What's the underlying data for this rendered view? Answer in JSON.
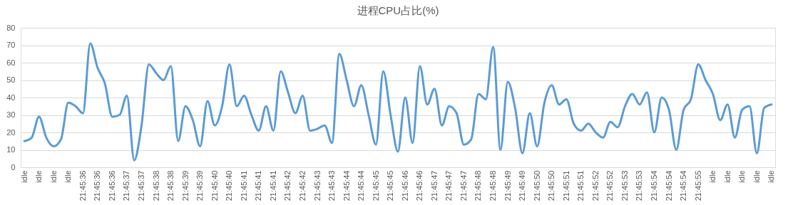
{
  "chart_data": {
    "type": "line",
    "title": "进程CPU占比(%)",
    "categories": [
      "idle",
      null,
      "idle",
      null,
      "idle",
      null,
      "idle",
      null,
      "21:45:36",
      null,
      "21:45:36",
      null,
      "21:45:36",
      null,
      "21:45:37",
      null,
      "21:45:37",
      null,
      "21:45:38",
      null,
      "21:45:38",
      null,
      "21:45:39",
      null,
      "21:45:39",
      null,
      "21:45:40",
      null,
      "21:45:40",
      null,
      "21:45:41",
      null,
      "21:45:41",
      null,
      "21:45:41",
      null,
      "21:45:42",
      null,
      "21:45:42",
      null,
      "21:45:43",
      null,
      "21:45:43",
      null,
      "21:45:44",
      null,
      "21:45:44",
      null,
      "21:45:45",
      null,
      "21:45:45",
      null,
      "21:45:46",
      null,
      "21:45:46",
      null,
      "21:45:47",
      null,
      "21:45:47",
      null,
      "21:45:47",
      null,
      "21:45:48",
      null,
      "21:45:48",
      null,
      "21:45:49",
      null,
      "21:45:49",
      null,
      "21:45:50",
      null,
      "21:45:50",
      null,
      "21:45:51",
      null,
      "21:45:51",
      null,
      "21:45:52",
      null,
      "21:45:52",
      null,
      "21:45:53",
      null,
      "21:45:53",
      null,
      "21:45:54",
      null,
      "21:45:54",
      null,
      "21:45:54",
      null,
      "21:45:55",
      null,
      "idle",
      null,
      "idle",
      null,
      "idle",
      null,
      "idle",
      null,
      "idle"
    ],
    "series": [
      {
        "color": "#5b9bd5",
        "values": [
          15,
          17,
          29,
          17,
          12,
          16,
          37,
          35,
          31,
          71,
          57,
          48,
          29,
          30,
          41,
          4,
          24,
          59,
          54,
          50,
          58,
          15,
          35,
          27,
          12,
          38,
          24,
          35,
          59,
          35,
          41,
          30,
          21,
          35,
          21,
          55,
          43,
          31,
          41,
          21,
          22,
          24,
          14,
          65,
          50,
          35,
          47,
          30,
          13,
          55,
          30,
          9,
          40,
          14,
          58,
          36,
          45,
          24,
          35,
          31,
          13,
          16,
          42,
          39,
          69,
          10,
          49,
          34,
          8,
          31,
          12,
          37,
          47,
          36,
          39,
          25,
          21,
          25,
          20,
          17,
          26,
          23,
          35,
          42,
          36,
          43,
          20,
          40,
          33,
          10,
          33,
          39,
          59,
          50,
          42,
          27,
          36,
          17,
          33,
          35,
          8,
          34,
          36
        ]
      }
    ],
    "ylim": [
      0,
      80
    ],
    "yticks": [
      0,
      10,
      20,
      30,
      40,
      50,
      60,
      70,
      80
    ],
    "grid": "y",
    "legend": false,
    "marker": "none",
    "line_style": "solid"
  }
}
